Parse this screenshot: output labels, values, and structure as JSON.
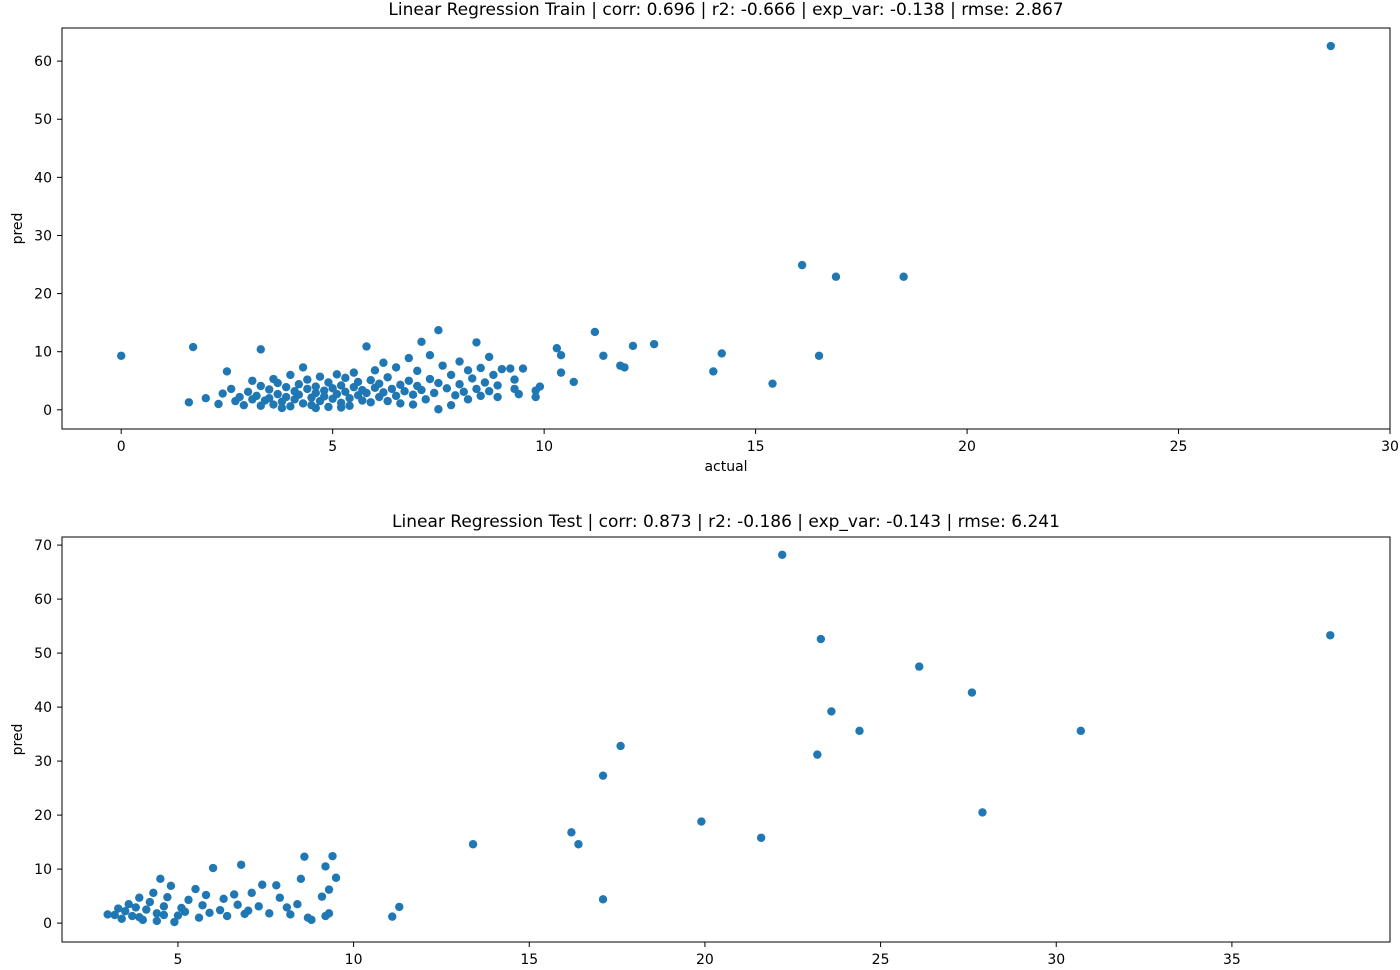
{
  "chart_data": [
    {
      "type": "scatter",
      "title": "Linear Regression Train | corr: 0.696 | r2: -0.666 | exp_var: -0.138 | rmse: 2.867",
      "xlabel": "actual",
      "ylabel": "pred",
      "xlim": [
        -1.4,
        30
      ],
      "ylim": [
        -3.3,
        65.7
      ],
      "xticks": [
        0,
        5,
        10,
        15,
        20,
        25,
        30
      ],
      "yticks": [
        0,
        10,
        20,
        30,
        40,
        50,
        60
      ],
      "grid": false,
      "color": "#1f77b4",
      "points": [
        [
          28.6,
          62.6
        ],
        [
          16.1,
          24.9
        ],
        [
          16.9,
          22.9
        ],
        [
          18.5,
          22.9
        ],
        [
          0.0,
          9.3
        ],
        [
          1.7,
          10.8
        ],
        [
          3.3,
          10.4
        ],
        [
          7.5,
          13.7
        ],
        [
          8.4,
          11.6
        ],
        [
          11.2,
          13.4
        ],
        [
          12.1,
          11.0
        ],
        [
          12.6,
          11.3
        ],
        [
          10.3,
          10.6
        ],
        [
          10.4,
          9.4
        ],
        [
          11.4,
          9.3
        ],
        [
          11.8,
          7.6
        ],
        [
          11.9,
          7.3
        ],
        [
          14.2,
          9.7
        ],
        [
          14.0,
          6.6
        ],
        [
          16.5,
          9.3
        ],
        [
          15.4,
          4.5
        ],
        [
          10.7,
          4.8
        ],
        [
          10.4,
          6.4
        ],
        [
          9.5,
          7.1
        ],
        [
          9.9,
          4.0
        ],
        [
          9.8,
          3.3
        ],
        [
          9.4,
          2.7
        ],
        [
          9.8,
          2.2
        ],
        [
          1.6,
          1.3
        ],
        [
          2.0,
          2.0
        ],
        [
          2.3,
          1.0
        ],
        [
          2.4,
          2.8
        ],
        [
          2.5,
          6.6
        ],
        [
          2.6,
          3.6
        ],
        [
          2.7,
          1.5
        ],
        [
          2.8,
          2.2
        ],
        [
          2.9,
          0.8
        ],
        [
          3.0,
          3.1
        ],
        [
          3.1,
          1.8
        ],
        [
          3.1,
          5.0
        ],
        [
          3.2,
          2.4
        ],
        [
          3.3,
          0.7
        ],
        [
          3.3,
          4.1
        ],
        [
          3.4,
          1.6
        ],
        [
          3.5,
          3.5
        ],
        [
          3.5,
          2.0
        ],
        [
          3.6,
          0.9
        ],
        [
          3.6,
          5.3
        ],
        [
          3.7,
          2.7
        ],
        [
          3.7,
          4.6
        ],
        [
          3.8,
          1.4
        ],
        [
          3.9,
          3.9
        ],
        [
          3.9,
          2.2
        ],
        [
          4.0,
          0.6
        ],
        [
          4.0,
          6.0
        ],
        [
          4.1,
          3.2
        ],
        [
          4.1,
          1.8
        ],
        [
          4.2,
          4.4
        ],
        [
          4.2,
          2.6
        ],
        [
          4.3,
          7.3
        ],
        [
          4.3,
          1.1
        ],
        [
          4.4,
          3.6
        ],
        [
          4.4,
          5.2
        ],
        [
          4.5,
          2.1
        ],
        [
          4.5,
          0.8
        ],
        [
          4.6,
          4.0
        ],
        [
          4.6,
          2.9
        ],
        [
          4.7,
          1.5
        ],
        [
          4.7,
          5.7
        ],
        [
          4.8,
          3.3
        ],
        [
          4.8,
          2.3
        ],
        [
          4.9,
          0.5
        ],
        [
          4.9,
          4.7
        ],
        [
          5.0,
          1.9
        ],
        [
          5.0,
          3.7
        ],
        [
          5.1,
          6.1
        ],
        [
          5.1,
          2.7
        ],
        [
          5.2,
          1.2
        ],
        [
          5.2,
          4.2
        ],
        [
          5.3,
          3.1
        ],
        [
          5.3,
          5.5
        ],
        [
          5.4,
          2.0
        ],
        [
          5.4,
          0.7
        ],
        [
          5.5,
          3.9
        ],
        [
          5.5,
          6.4
        ],
        [
          5.6,
          2.5
        ],
        [
          5.6,
          4.8
        ],
        [
          5.7,
          1.6
        ],
        [
          5.7,
          3.4
        ],
        [
          5.8,
          10.9
        ],
        [
          5.8,
          2.9
        ],
        [
          5.9,
          5.1
        ],
        [
          5.9,
          1.3
        ],
        [
          6.0,
          3.8
        ],
        [
          6.0,
          6.8
        ],
        [
          6.1,
          2.2
        ],
        [
          6.1,
          4.5
        ],
        [
          6.2,
          8.1
        ],
        [
          6.2,
          3.0
        ],
        [
          6.3,
          1.5
        ],
        [
          6.3,
          5.6
        ],
        [
          6.4,
          3.6
        ],
        [
          6.5,
          2.4
        ],
        [
          6.5,
          7.3
        ],
        [
          6.6,
          4.3
        ],
        [
          6.6,
          1.1
        ],
        [
          6.7,
          3.2
        ],
        [
          6.8,
          8.9
        ],
        [
          6.8,
          5.0
        ],
        [
          6.9,
          2.6
        ],
        [
          7.0,
          4.1
        ],
        [
          7.0,
          6.7
        ],
        [
          7.1,
          11.7
        ],
        [
          7.1,
          3.4
        ],
        [
          7.2,
          1.8
        ],
        [
          7.3,
          5.3
        ],
        [
          7.3,
          9.4
        ],
        [
          7.4,
          2.9
        ],
        [
          7.5,
          4.6
        ],
        [
          7.5,
          0.1
        ],
        [
          7.6,
          7.6
        ],
        [
          7.7,
          3.7
        ],
        [
          7.8,
          0.8
        ],
        [
          7.8,
          6.0
        ],
        [
          7.9,
          2.5
        ],
        [
          8.0,
          4.4
        ],
        [
          8.0,
          8.3
        ],
        [
          8.1,
          3.1
        ],
        [
          8.2,
          6.8
        ],
        [
          8.2,
          1.8
        ],
        [
          8.3,
          5.4
        ],
        [
          8.4,
          3.6
        ],
        [
          8.5,
          7.2
        ],
        [
          8.5,
          2.4
        ],
        [
          8.6,
          4.7
        ],
        [
          8.7,
          9.1
        ],
        [
          8.7,
          3.2
        ],
        [
          8.8,
          6.0
        ],
        [
          8.9,
          2.2
        ],
        [
          8.9,
          4.2
        ],
        [
          9.0,
          7.0
        ],
        [
          9.2,
          7.1
        ],
        [
          9.3,
          3.6
        ],
        [
          9.3,
          5.2
        ],
        [
          4.6,
          0.3
        ],
        [
          5.2,
          0.4
        ],
        [
          3.8,
          0.3
        ],
        [
          6.9,
          0.9
        ]
      ]
    },
    {
      "type": "scatter",
      "title": "Linear Regression Test | corr: 0.873 | r2: -0.186 | exp_var: -0.143 | rmse: 6.241",
      "xlabel": "",
      "ylabel": "pred",
      "xlim": [
        1.7,
        39.5
      ],
      "ylim": [
        -3.5,
        71.5
      ],
      "xticks": [
        5,
        10,
        15,
        20,
        25,
        30,
        35
      ],
      "yticks": [
        0,
        10,
        20,
        30,
        40,
        50,
        60,
        70
      ],
      "grid": false,
      "color": "#1f77b4",
      "points": [
        [
          22.2,
          68.2
        ],
        [
          37.8,
          53.3
        ],
        [
          23.3,
          52.6
        ],
        [
          26.1,
          47.5
        ],
        [
          27.6,
          42.7
        ],
        [
          23.6,
          39.2
        ],
        [
          24.4,
          35.6
        ],
        [
          30.7,
          35.6
        ],
        [
          17.6,
          32.8
        ],
        [
          23.2,
          31.2
        ],
        [
          17.1,
          27.3
        ],
        [
          27.9,
          20.5
        ],
        [
          19.9,
          18.8
        ],
        [
          21.6,
          15.8
        ],
        [
          16.2,
          16.8
        ],
        [
          16.4,
          14.6
        ],
        [
          13.4,
          14.6
        ],
        [
          17.1,
          4.4
        ],
        [
          11.3,
          3.0
        ],
        [
          11.1,
          1.2
        ],
        [
          9.4,
          12.4
        ],
        [
          8.6,
          12.3
        ],
        [
          9.2,
          10.5
        ],
        [
          9.5,
          8.4
        ],
        [
          8.5,
          8.2
        ],
        [
          9.3,
          6.2
        ],
        [
          9.1,
          4.9
        ],
        [
          9.3,
          1.8
        ],
        [
          9.2,
          1.3
        ],
        [
          8.7,
          1.0
        ],
        [
          8.8,
          0.6
        ],
        [
          6.8,
          10.8
        ],
        [
          6.0,
          10.2
        ],
        [
          7.4,
          7.1
        ],
        [
          7.8,
          7.0
        ],
        [
          7.9,
          4.7
        ],
        [
          8.1,
          2.9
        ],
        [
          8.2,
          1.6
        ],
        [
          7.1,
          5.6
        ],
        [
          7.3,
          3.1
        ],
        [
          7.6,
          1.8
        ],
        [
          6.6,
          5.3
        ],
        [
          6.7,
          3.4
        ],
        [
          6.9,
          1.7
        ],
        [
          6.3,
          4.5
        ],
        [
          6.2,
          2.4
        ],
        [
          5.8,
          5.2
        ],
        [
          5.7,
          3.3
        ],
        [
          5.6,
          1.0
        ],
        [
          5.9,
          1.9
        ],
        [
          5.5,
          6.3
        ],
        [
          5.3,
          4.3
        ],
        [
          5.1,
          2.8
        ],
        [
          5.0,
          1.4
        ],
        [
          4.8,
          6.9
        ],
        [
          4.7,
          4.8
        ],
        [
          4.6,
          3.1
        ],
        [
          4.5,
          8.2
        ],
        [
          4.4,
          1.8
        ],
        [
          4.3,
          5.6
        ],
        [
          4.2,
          3.9
        ],
        [
          4.1,
          2.5
        ],
        [
          4.0,
          0.6
        ],
        [
          3.9,
          4.7
        ],
        [
          3.8,
          2.9
        ],
        [
          3.7,
          1.3
        ],
        [
          3.6,
          3.5
        ],
        [
          3.5,
          2.2
        ],
        [
          3.4,
          0.8
        ],
        [
          3.3,
          2.7
        ],
        [
          3.2,
          1.5
        ],
        [
          3.0,
          1.6
        ],
        [
          4.9,
          0.2
        ],
        [
          5.2,
          2.1
        ],
        [
          4.4,
          0.4
        ],
        [
          6.4,
          1.3
        ],
        [
          7.0,
          2.3
        ],
        [
          8.4,
          3.5
        ],
        [
          3.9,
          1.1
        ],
        [
          4.6,
          1.5
        ]
      ]
    }
  ]
}
